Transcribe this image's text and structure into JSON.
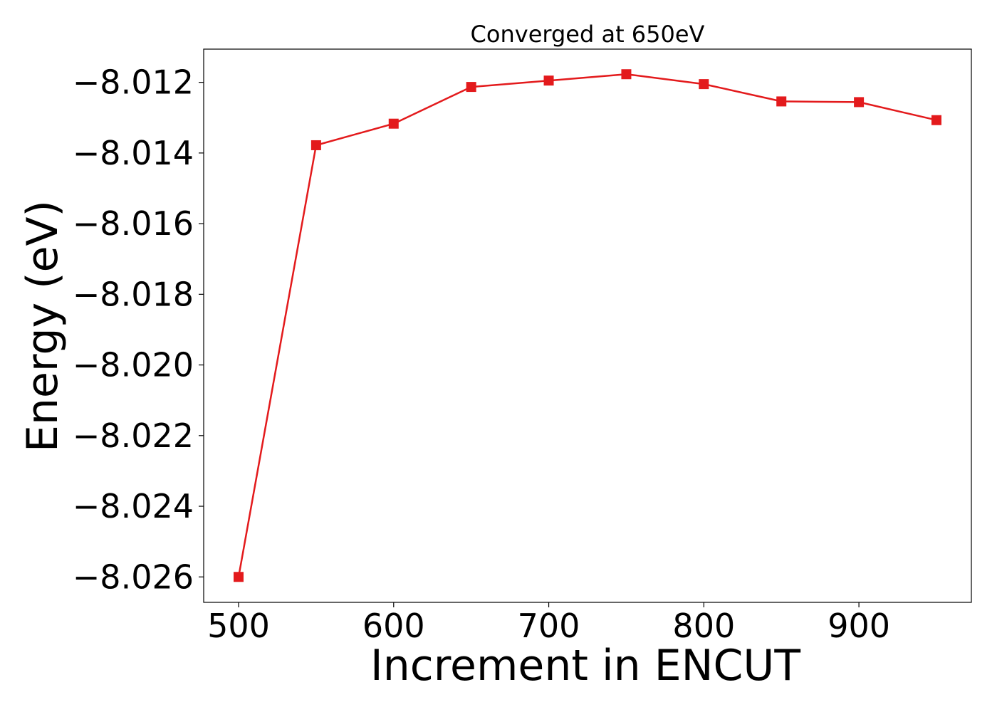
{
  "chart_data": {
    "type": "line",
    "title": "Converged at 650eV",
    "xlabel": "Increment in ENCUT",
    "ylabel": "Energy (eV)",
    "x": [
      500,
      550,
      600,
      650,
      700,
      750,
      800,
      850,
      900,
      950
    ],
    "series": [
      {
        "values": [
          -8.026,
          -8.01378,
          -8.01317,
          -8.01213,
          -8.01195,
          -8.01177,
          -8.01205,
          -8.01254,
          -8.01256,
          -8.01307
        ],
        "color": "#e31a1c",
        "marker": "square"
      }
    ],
    "xticks": [
      500,
      600,
      700,
      800,
      900
    ],
    "xtick_labels": [
      "500",
      "600",
      "700",
      "800",
      "900"
    ],
    "yticks": [
      -8.026,
      -8.024,
      -8.022,
      -8.02,
      -8.018,
      -8.016,
      -8.014,
      -8.012
    ],
    "ytick_labels": [
      "−8.026",
      "−8.024",
      "−8.022",
      "−8.020",
      "−8.018",
      "−8.016",
      "−8.014",
      "−8.012"
    ],
    "xlim": [
      477.5,
      972.5
    ],
    "ylim": [
      -8.02672,
      -8.01106
    ],
    "grid": false,
    "legend": "none"
  }
}
